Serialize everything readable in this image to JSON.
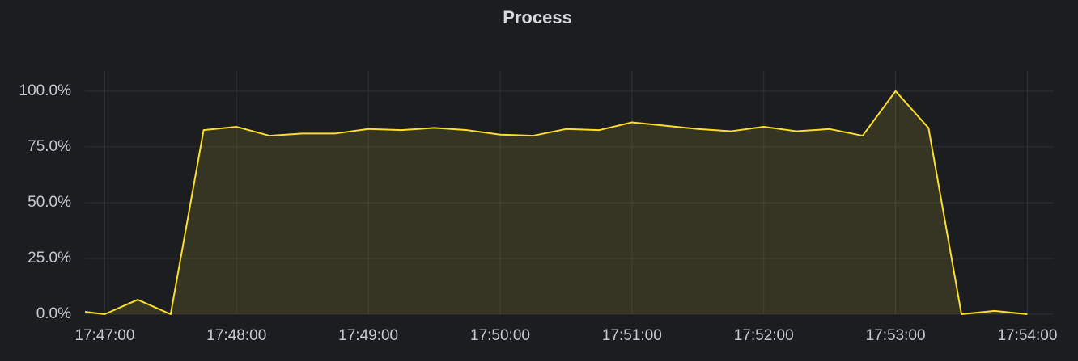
{
  "chart_data": {
    "type": "area",
    "title": "Process",
    "color": "#fade2a",
    "grid": true,
    "x": [
      "17:46:51",
      "17:47:00",
      "17:47:15",
      "17:47:30",
      "17:47:45",
      "17:48:00",
      "17:48:15",
      "17:48:30",
      "17:48:45",
      "17:49:00",
      "17:49:15",
      "17:49:30",
      "17:49:45",
      "17:50:00",
      "17:50:15",
      "17:50:30",
      "17:50:45",
      "17:51:00",
      "17:51:15",
      "17:51:30",
      "17:51:45",
      "17:52:00",
      "17:52:15",
      "17:52:30",
      "17:52:45",
      "17:53:00",
      "17:53:15",
      "17:53:30",
      "17:53:45",
      "17:54:00"
    ],
    "values": [
      1.1,
      0,
      6.5,
      0,
      82.5,
      84,
      80,
      81,
      81,
      83,
      82.5,
      83.5,
      82.5,
      80.5,
      80,
      83,
      82.5,
      86,
      84.5,
      83,
      82,
      84,
      82,
      83,
      80,
      100,
      83.5,
      0,
      1.5,
      0
    ],
    "xlim": [
      "17:46:51",
      "17:54:12"
    ],
    "xticks": [
      "17:47:00",
      "17:48:00",
      "17:49:00",
      "17:50:00",
      "17:51:00",
      "17:52:00",
      "17:53:00",
      "17:54:00"
    ],
    "ylim": [
      0,
      109
    ],
    "yticks": [
      {
        "value": 0,
        "label": "0.0%"
      },
      {
        "value": 25,
        "label": "25.0%"
      },
      {
        "value": 50,
        "label": "50.0%"
      },
      {
        "value": 75,
        "label": "75.0%"
      },
      {
        "value": 100,
        "label": "100.0%"
      }
    ]
  }
}
